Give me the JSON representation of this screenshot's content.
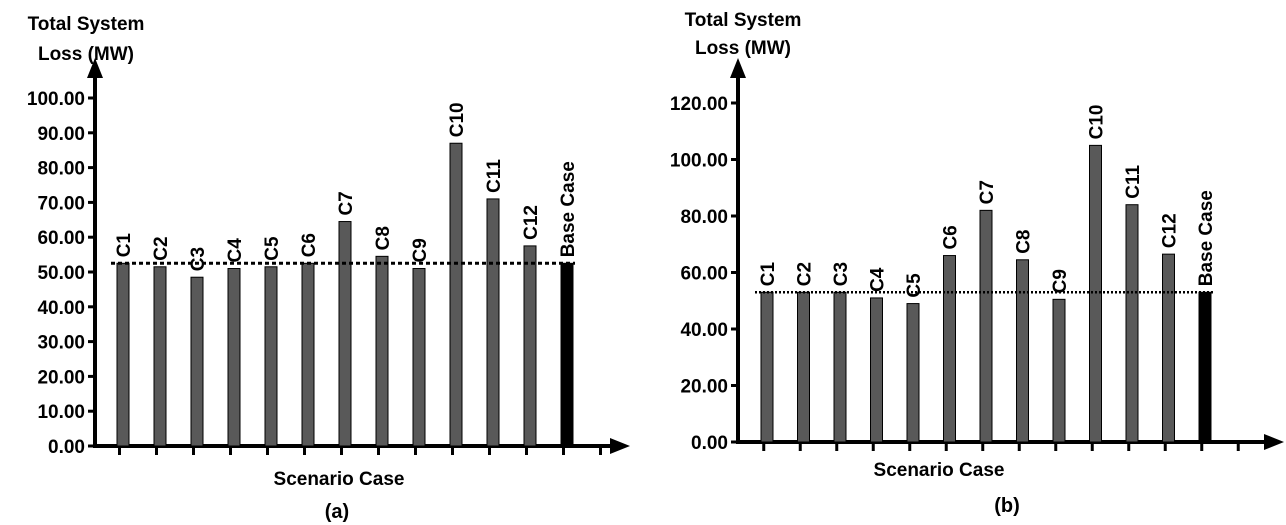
{
  "chart_data": [
    {
      "panel_label": "(a)",
      "type": "bar",
      "ylabel": "Total System Loss (MW)",
      "ylabel_lines": [
        "Total System",
        "Loss (MW)"
      ],
      "xlabel": "Scenario Case",
      "ylim": [
        0,
        100
      ],
      "yticks": [
        "0.00",
        "10.00",
        "20.00",
        "30.00",
        "40.00",
        "50.00",
        "60.00",
        "70.00",
        "80.00",
        "90.00",
        "100.00"
      ],
      "categories": [
        "C1",
        "C2",
        "C3",
        "C4",
        "C5",
        "C6",
        "C7",
        "C8",
        "C9",
        "C10",
        "C11",
        "C12",
        "Base Case"
      ],
      "values": [
        52.5,
        51.5,
        48.5,
        51,
        51.5,
        52.5,
        64.5,
        54.5,
        51,
        87,
        71,
        57.5,
        52.5
      ],
      "reference_line": 52.5,
      "grid": false,
      "bar_color": "#595959",
      "highlight_color": "#000000"
    },
    {
      "panel_label": "(b)",
      "type": "bar",
      "ylabel": "Total System Loss (MW)",
      "ylabel_lines": [
        "Total System",
        "Loss (MW)"
      ],
      "xlabel": "Scenario Case",
      "ylim": [
        0,
        120
      ],
      "yticks": [
        "0.00",
        "20.00",
        "40.00",
        "60.00",
        "80.00",
        "100.00",
        "120.00"
      ],
      "categories": [
        "C1",
        "C2",
        "C3",
        "C4",
        "C5",
        "C6",
        "C7",
        "C8",
        "C9",
        "C10",
        "C11",
        "C12",
        "Base Case"
      ],
      "values": [
        53,
        53,
        53,
        51,
        49,
        66,
        82,
        64.5,
        50.5,
        105,
        84,
        66.5,
        53
      ],
      "reference_line": 53,
      "grid": false,
      "bar_color": "#595959",
      "highlight_color": "#000000"
    }
  ]
}
